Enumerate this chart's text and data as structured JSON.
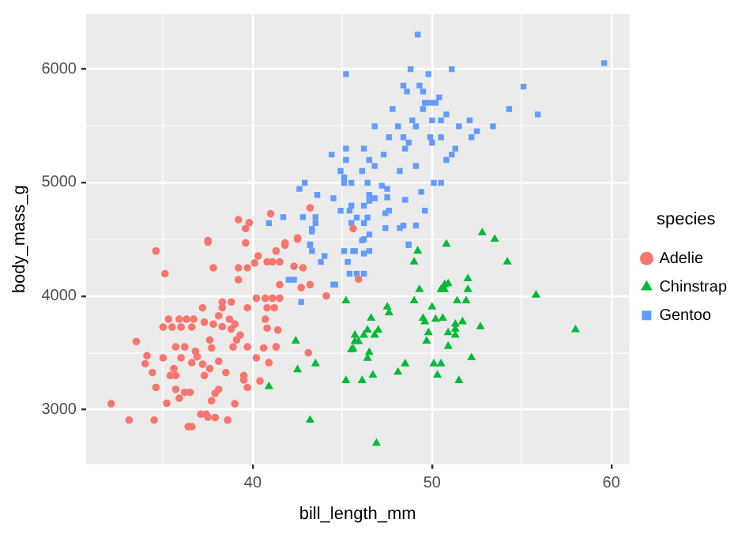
{
  "chart_data": {
    "type": "scatter",
    "xlabel": "bill_length_mm",
    "ylabel": "body_mass_g",
    "legend_title": "species",
    "legend": "right",
    "grid": true,
    "xlim": [
      30.7,
      61.0
    ],
    "xticks": [
      {
        "value": 35,
        "label": null
      },
      40,
      {
        "value": 45,
        "label": null
      },
      50,
      {
        "value": 55,
        "label": null
      },
      60
    ],
    "ylim": [
      2520,
      6480
    ],
    "yticks": [
      3000,
      {
        "value": 3500,
        "label": null
      },
      4000,
      {
        "value": 4500,
        "label": null
      },
      5000,
      {
        "value": 5500,
        "label": null
      },
      6000
    ],
    "series": [
      {
        "name": "Adelie",
        "color": "#f8766d",
        "marker": "circle",
        "x": [
          37.5,
          34.6,
          35.1,
          37.8,
          39.2,
          39.7,
          39.2,
          40.3,
          40.1,
          40.8,
          41.1,
          41.5,
          41.3,
          41.8,
          42.5,
          42.3,
          42.8,
          43.2,
          42.7,
          44.1,
          41.5,
          40.2,
          40.7,
          41.1,
          41.5,
          40.8,
          41.2,
          38.3,
          38.8,
          37.2,
          38.3,
          39.7,
          35.3,
          35.9,
          36.3,
          36.7,
          35.0,
          35.5,
          36.0,
          36.6,
          37.3,
          37.8,
          38.3,
          38.7,
          39.0,
          38.8,
          38.1,
          40.7,
          40.8,
          41.4,
          39.3,
          39.1,
          38.9,
          37.6,
          37.7,
          36.8,
          36.9,
          36.2,
          35.7,
          33.5,
          34.1,
          34.0,
          35.0,
          36.0,
          36.6,
          37.2,
          38.1,
          37.6,
          37.3,
          38.5,
          39.7,
          40.6,
          41.3,
          40.2,
          40.9,
          39.5,
          39.5,
          39.7,
          40.4,
          34.4,
          34.6,
          35.6,
          35.4,
          35.7,
          35.7,
          36.2,
          36.5,
          35.9,
          35.2,
          38.1,
          37.9,
          37.7,
          39.0,
          32.1,
          33.1,
          34.5,
          37.1,
          37.4,
          37.5,
          37.9,
          38.6,
          36.4,
          36.6,
          43.1,
          41.0,
          39.2,
          39.8,
          39.6,
          43.2,
          45.6,
          45.9,
          37.5,
          42.5,
          41.8,
          39.6
        ],
        "values": [
          4474,
          4396,
          4196,
          4248,
          4248,
          4248,
          4143,
          4352,
          4291,
          4300,
          4300,
          4300,
          4396,
          4448,
          4500,
          4261,
          4248,
          4100,
          4074,
          4000,
          4100,
          3980,
          3980,
          3980,
          3980,
          3896,
          3896,
          3948,
          3948,
          3896,
          3896,
          3896,
          3796,
          3796,
          3796,
          3796,
          3726,
          3726,
          3726,
          3726,
          3770,
          3752,
          3730,
          3796,
          3752,
          3709,
          3826,
          3796,
          3717,
          3700,
          3656,
          3613,
          3552,
          3613,
          3543,
          3513,
          3465,
          3552,
          3552,
          3600,
          3474,
          3404,
          3456,
          3456,
          3413,
          3400,
          3426,
          3361,
          3300,
          3326,
          3552,
          3543,
          3552,
          3456,
          3413,
          3300,
          3261,
          3195,
          3252,
          3326,
          3195,
          3361,
          3300,
          3300,
          3178,
          3152,
          3152,
          3100,
          3056,
          3178,
          3143,
          3078,
          3052,
          3052,
          2908,
          2908,
          2960,
          2960,
          2934,
          2930,
          2908,
          2850,
          2850,
          3500,
          4724,
          4672,
          4646,
          4594,
          4776,
          4594,
          4148,
          4489,
          4511,
          4467,
          4467
        ]
      },
      {
        "name": "Chinstrap",
        "color": "#00ba38",
        "marker": "triangle",
        "x": [
          52.8,
          53.5,
          50.8,
          49.2,
          49.0,
          54.2,
          52.0,
          50.7,
          50.9,
          50.5,
          50.7,
          49.3,
          52.0,
          55.8,
          45.2,
          49.0,
          51.4,
          51.9,
          47.5,
          47.6,
          50.0,
          46.6,
          49.5,
          49.6,
          50.2,
          50.6,
          51.3,
          51.7,
          52.7,
          58.0,
          45.7,
          46.2,
          46.4,
          46.8,
          47.0,
          45.9,
          45.7,
          49.8,
          50.9,
          51.3,
          51.3,
          49.7,
          45.5,
          45.6,
          46.5,
          50.9,
          46.4,
          52.2,
          48.5,
          50.1,
          50.5,
          48.1,
          50.3,
          46.7,
          45.2,
          46.1,
          51.5,
          46.9,
          42.4,
          43.5,
          42.5,
          40.9,
          43.2
        ],
        "values": [
          4557,
          4500,
          4457,
          4396,
          4300,
          4300,
          4152,
          4100,
          4109,
          4057,
          4057,
          4057,
          4057,
          4009,
          3957,
          3957,
          3957,
          3957,
          3904,
          3852,
          3904,
          3804,
          3804,
          3774,
          3796,
          3804,
          3752,
          3774,
          3730,
          3704,
          3656,
          3656,
          3700,
          3656,
          3700,
          3600,
          3600,
          3678,
          3678,
          3656,
          3709,
          3604,
          3526,
          3535,
          3504,
          3557,
          3452,
          3457,
          3404,
          3404,
          3404,
          3330,
          3304,
          3304,
          3256,
          3256,
          3256,
          2704,
          3604,
          3404,
          3352,
          3204,
          2908
        ]
      },
      {
        "name": "Gentoo",
        "color": "#619cff",
        "marker": "square",
        "x": [
          49.2,
          45.2,
          48.8,
          49.8,
          51.1,
          48.4,
          48.6,
          49.3,
          49.5,
          50.4,
          49.9,
          49.6,
          50.2,
          47.8,
          49.5,
          50.8,
          50.5,
          50.0,
          48.9,
          49.1,
          48.1,
          46.8,
          51.5,
          52.1,
          53.4,
          54.3,
          55.1,
          55.9,
          59.6,
          52.5,
          52.2,
          47.6,
          48.4,
          49.9,
          50.5,
          48.7,
          50.0,
          45.2,
          46.2,
          47.3,
          48.5,
          51.3,
          51.1,
          50.8,
          45.2,
          46.5,
          46.8,
          49.1,
          44.9,
          46.1,
          48.2,
          45.1,
          45.5,
          46.4,
          45.1,
          47.2,
          47.5,
          50.1,
          50.5,
          49.4,
          46.5,
          46.8,
          46.5,
          48.5,
          47.5,
          44.5,
          45.5,
          44.9,
          45.4,
          47.4,
          47.6,
          46.2,
          49.6,
          45.8,
          46.4,
          45.5,
          46.2,
          47.4,
          48.2,
          48.4,
          49.1,
          46.5,
          46.1,
          48.7,
          44.4,
          42.6,
          42.9,
          43.6,
          40.9,
          41.7,
          42.8,
          43.5,
          43.5,
          43.3,
          43.3,
          43.2,
          43.2,
          43.3,
          44.0,
          43.8,
          45.1,
          45.6,
          46.2,
          45.3,
          45.4,
          45.8,
          46.2,
          42.0,
          42.3,
          44.5,
          42.7,
          45.7,
          46.2,
          46.5,
          48.7,
          44.6
        ],
        "values": [
          6301,
          5952,
          5996,
          5952,
          5996,
          5852,
          5800,
          5852,
          5800,
          5747,
          5700,
          5700,
          5700,
          5646,
          5646,
          5598,
          5546,
          5546,
          5546,
          5494,
          5494,
          5494,
          5494,
          5546,
          5494,
          5646,
          5843,
          5598,
          6050,
          5450,
          5397,
          5397,
          5397,
          5397,
          5397,
          5350,
          5350,
          5297,
          5297,
          5245,
          5297,
          5297,
          5245,
          5197,
          5197,
          5197,
          5144,
          5144,
          5100,
          5100,
          5100,
          5044,
          4996,
          4996,
          4996,
          4970,
          4943,
          4996,
          4996,
          4917,
          4890,
          4860,
          4838,
          4847,
          4869,
          4860,
          4795,
          4751,
          4751,
          4729,
          4751,
          4795,
          4751,
          4690,
          4690,
          4642,
          4642,
          4598,
          4598,
          4620,
          4620,
          4541,
          4489,
          4454,
          5245,
          4943,
          4996,
          4890,
          4642,
          4694,
          4694,
          4694,
          4642,
          4590,
          4568,
          4454,
          4448,
          4396,
          4352,
          4300,
          4396,
          4396,
          4500,
          4300,
          4196,
          4196,
          4196,
          4143,
          4143,
          4100,
          3948,
          4396,
          4374,
          4396,
          4448,
          4100
        ]
      }
    ]
  }
}
